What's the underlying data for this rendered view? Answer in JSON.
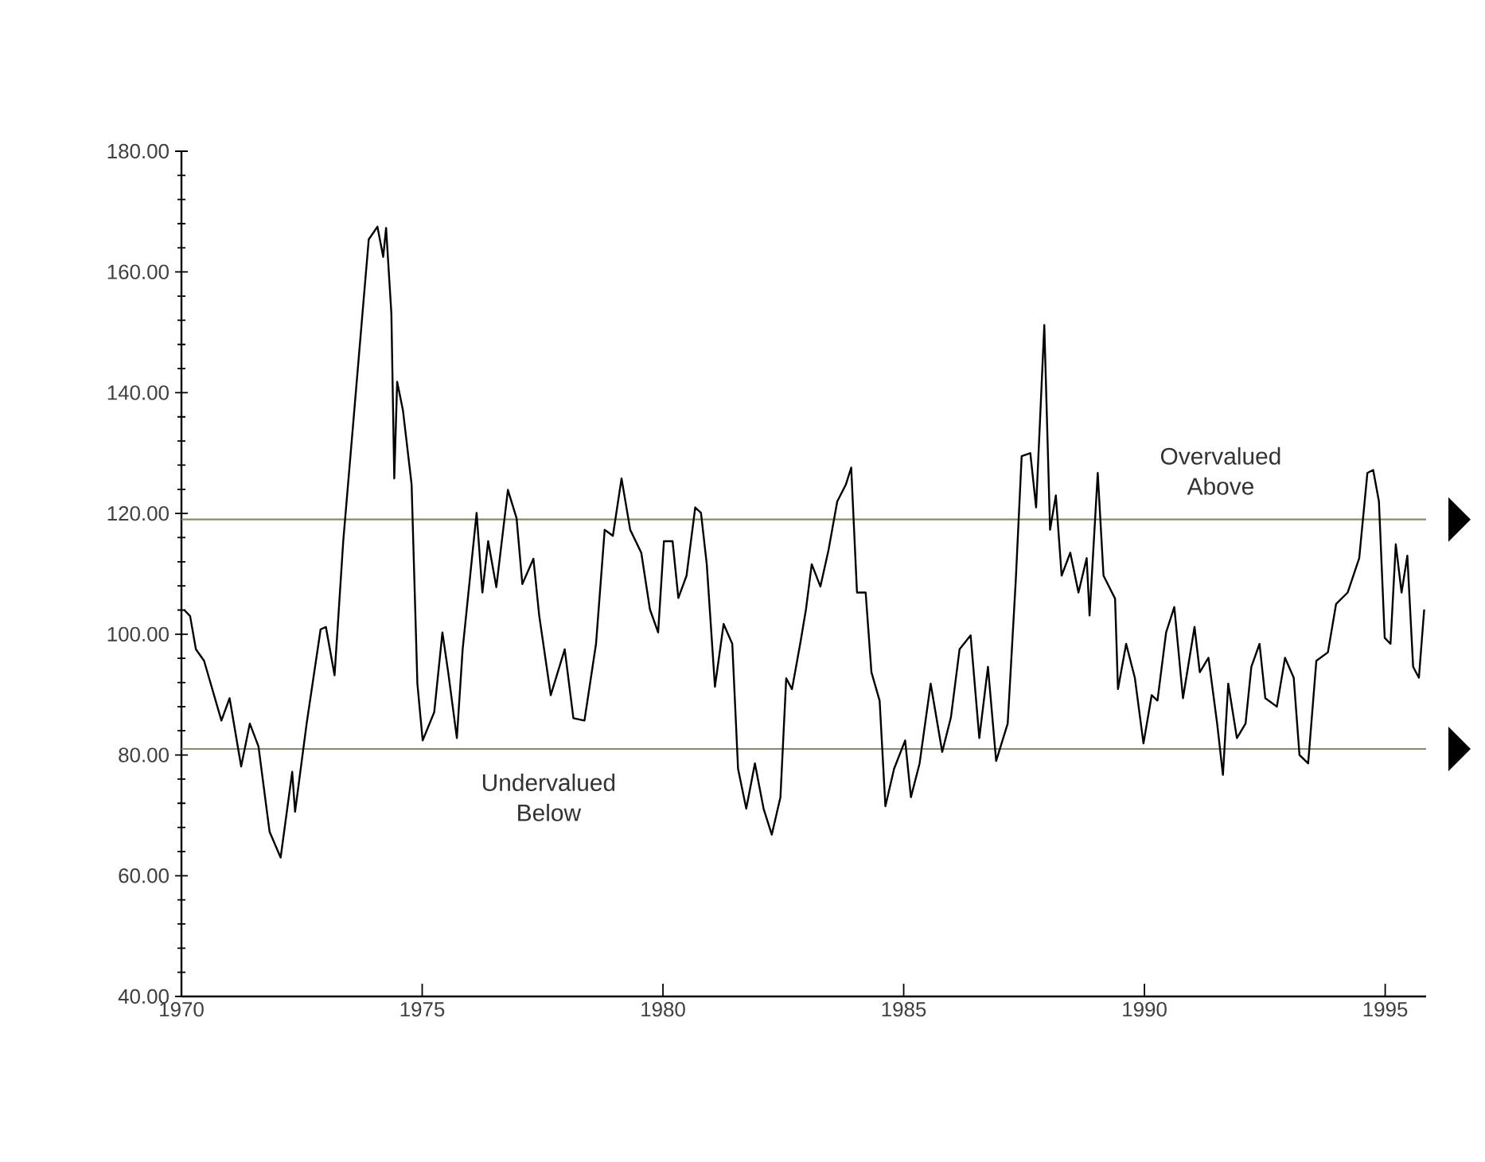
{
  "chart_data": {
    "type": "line",
    "color": "#000000",
    "marker": "none",
    "xlim": [
      1970,
      1995.85
    ],
    "ylim": [
      40,
      180
    ],
    "xticks": [
      1970,
      1975,
      1980,
      1985,
      1990,
      1995
    ],
    "yticks": [
      {
        "value": 40,
        "label": "40.00"
      },
      {
        "value": 60,
        "label": "60.00"
      },
      {
        "value": 80,
        "label": "80.00"
      },
      {
        "value": 100,
        "label": "100.00"
      },
      {
        "value": 120,
        "label": "120.00"
      },
      {
        "value": 140,
        "label": "140.00"
      },
      {
        "value": 160,
        "label": "160.00"
      },
      {
        "value": 180,
        "label": "180.00"
      }
    ],
    "ref_lines": [
      {
        "axis": "y",
        "value": 119,
        "label": "Overvalued Above",
        "color": "#8a8a6a"
      },
      {
        "axis": "y",
        "value": 81,
        "label": "Undervalued Below",
        "color": "#8a8a6a"
      }
    ],
    "x": [
      1970.06,
      1970.18,
      1970.3,
      1970.47,
      1970.83,
      1971.0,
      1971.24,
      1971.42,
      1971.6,
      1971.83,
      1972.06,
      1972.3,
      1972.36,
      1972.6,
      1972.89,
      1973.0,
      1973.18,
      1973.36,
      1973.66,
      1973.77,
      1973.89,
      1974.07,
      1974.19,
      1974.25,
      1974.36,
      1974.42,
      1974.48,
      1974.6,
      1974.78,
      1974.9,
      1975.01,
      1975.25,
      1975.42,
      1975.54,
      1975.72,
      1975.84,
      1976.13,
      1976.25,
      1976.37,
      1976.54,
      1976.78,
      1976.96,
      1977.08,
      1977.31,
      1977.43,
      1977.67,
      1977.96,
      1978.14,
      1978.37,
      1978.61,
      1978.79,
      1978.96,
      1979.14,
      1979.32,
      1979.55,
      1979.73,
      1979.9,
      1980.02,
      1980.2,
      1980.32,
      1980.49,
      1980.67,
      1980.79,
      1980.91,
      1981.08,
      1981.26,
      1981.44,
      1981.56,
      1981.73,
      1981.91,
      1982.09,
      1982.26,
      1982.44,
      1982.56,
      1982.68,
      1982.85,
      1982.97,
      1983.09,
      1983.27,
      1983.44,
      1983.62,
      1983.8,
      1983.91,
      1984.03,
      1984.21,
      1984.33,
      1984.5,
      1984.62,
      1984.8,
      1985.03,
      1985.15,
      1985.33,
      1985.56,
      1985.8,
      1985.98,
      1986.16,
      1986.39,
      1986.57,
      1986.75,
      1986.92,
      1987.16,
      1987.33,
      1987.45,
      1987.63,
      1987.75,
      1987.92,
      1988.04,
      1988.16,
      1988.28,
      1988.46,
      1988.63,
      1988.8,
      1988.86,
      1989.03,
      1989.15,
      1989.39,
      1989.45,
      1989.62,
      1989.8,
      1989.98,
      1990.15,
      1990.27,
      1990.45,
      1990.62,
      1990.8,
      1991.04,
      1991.15,
      1991.33,
      1991.51,
      1991.63,
      1991.74,
      1991.92,
      1992.1,
      1992.22,
      1992.39,
      1992.51,
      1992.75,
      1992.92,
      1993.1,
      1993.22,
      1993.4,
      1993.57,
      1993.81,
      1993.98,
      1994.22,
      1994.46,
      1994.63,
      1994.75,
      1994.87,
      1994.99,
      1995.11,
      1995.22,
      1995.34,
      1995.46,
      1995.58,
      1995.7,
      1995.81
    ],
    "values": [
      104,
      103,
      97.5,
      95.6,
      85.7,
      89.4,
      78.1,
      85.2,
      81.4,
      67.3,
      63,
      77.2,
      70.6,
      85.2,
      100.8,
      101.2,
      93.2,
      115.4,
      143.7,
      154.1,
      165.4,
      167.5,
      162.5,
      167.3,
      153.1,
      125.8,
      141.8,
      137.1,
      124.8,
      91.8,
      82.4,
      87.1,
      100.3,
      93.7,
      82.8,
      97.5,
      120.1,
      106.9,
      115.4,
      107.8,
      123.9,
      119.2,
      108.3,
      112.5,
      103.1,
      89.9,
      97.5,
      86.1,
      85.7,
      98.4,
      117.3,
      116.3,
      125.8,
      117.3,
      113.5,
      104.1,
      100.3,
      115.4,
      115.4,
      106,
      109.7,
      121,
      120.1,
      111.6,
      91.3,
      101.7,
      98.4,
      77.7,
      71.1,
      78.6,
      71.1,
      66.8,
      73,
      92.7,
      90.9,
      98.4,
      104.1,
      111.6,
      107.9,
      114,
      122,
      124.8,
      127.6,
      106.9,
      106.9,
      93.7,
      89,
      71.5,
      77.7,
      82.4,
      73,
      78.6,
      91.8,
      80.5,
      86.2,
      97.5,
      99.8,
      82.8,
      94.6,
      79,
      85.2,
      109.3,
      129.5,
      130,
      121,
      151.2,
      117.3,
      123,
      109.7,
      113.5,
      106.9,
      112.6,
      103.1,
      126.7,
      109.7,
      105.9,
      90.9,
      98.4,
      92.8,
      81.9,
      89.9,
      89,
      100.3,
      104.5,
      89.4,
      101.2,
      93.7,
      96.1,
      85.2,
      76.7,
      91.8,
      82.8,
      85.2,
      94.6,
      98.4,
      89.4,
      88,
      96.1,
      92.8,
      80,
      78.6,
      95.6,
      97,
      105,
      106.9,
      112.6,
      126.7,
      127.2,
      122,
      99.4,
      98.4,
      114.9,
      106.9,
      113,
      94.6,
      92.8,
      104.1
    ]
  }
}
